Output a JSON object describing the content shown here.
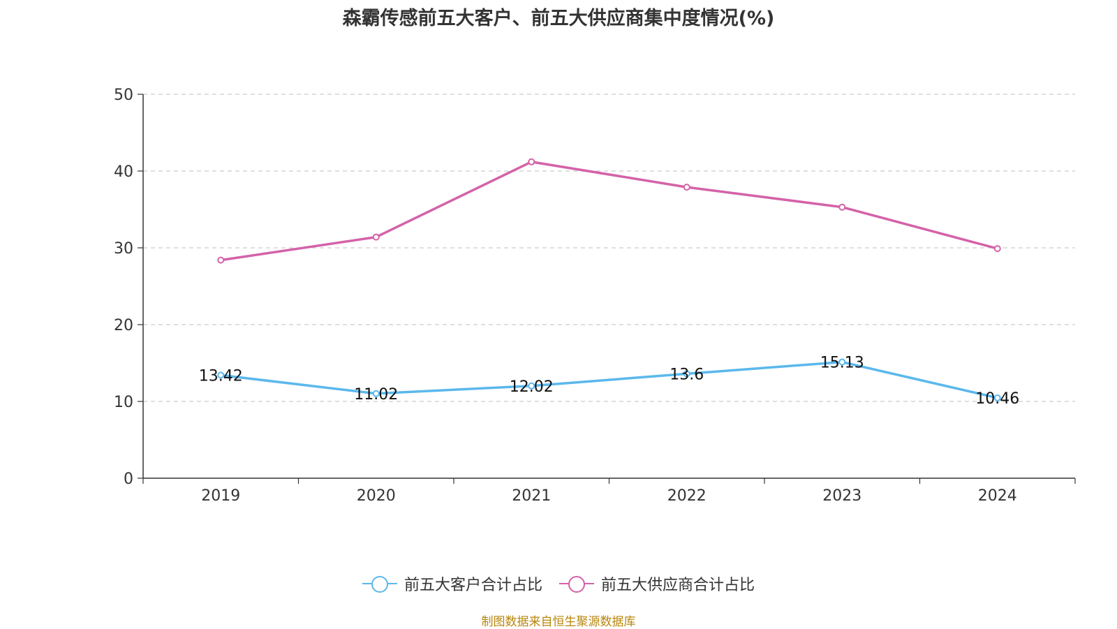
{
  "title": "森霸传感前五大客户、前五大供应商集中度情况(%)",
  "source_note": "制图数据来自恒生聚源数据库",
  "chart_data": {
    "type": "line",
    "title": "森霸传感前五大客户、前五大供应商集中度情况(%)",
    "categories": [
      "2019",
      "2020",
      "2021",
      "2022",
      "2023",
      "2024"
    ],
    "ylim": [
      0,
      50
    ],
    "yticks": [
      0,
      10,
      20,
      30,
      40,
      50
    ],
    "grid": true,
    "legend_position": "bottom",
    "series": [
      {
        "name": "前五大客户合计占比",
        "values": [
          13.42,
          11.02,
          12.02,
          13.6,
          15.13,
          10.46
        ],
        "labels": [
          "13.42",
          "11.02",
          "12.02",
          "13.6",
          "15.13",
          "10.46"
        ],
        "color": "#5bb8ec"
      },
      {
        "name": "前五大供应商合计占比",
        "values": [
          28.4,
          31.4,
          41.2,
          37.9,
          35.3,
          29.9
        ],
        "labels": [],
        "color": "#d462a8"
      }
    ]
  }
}
